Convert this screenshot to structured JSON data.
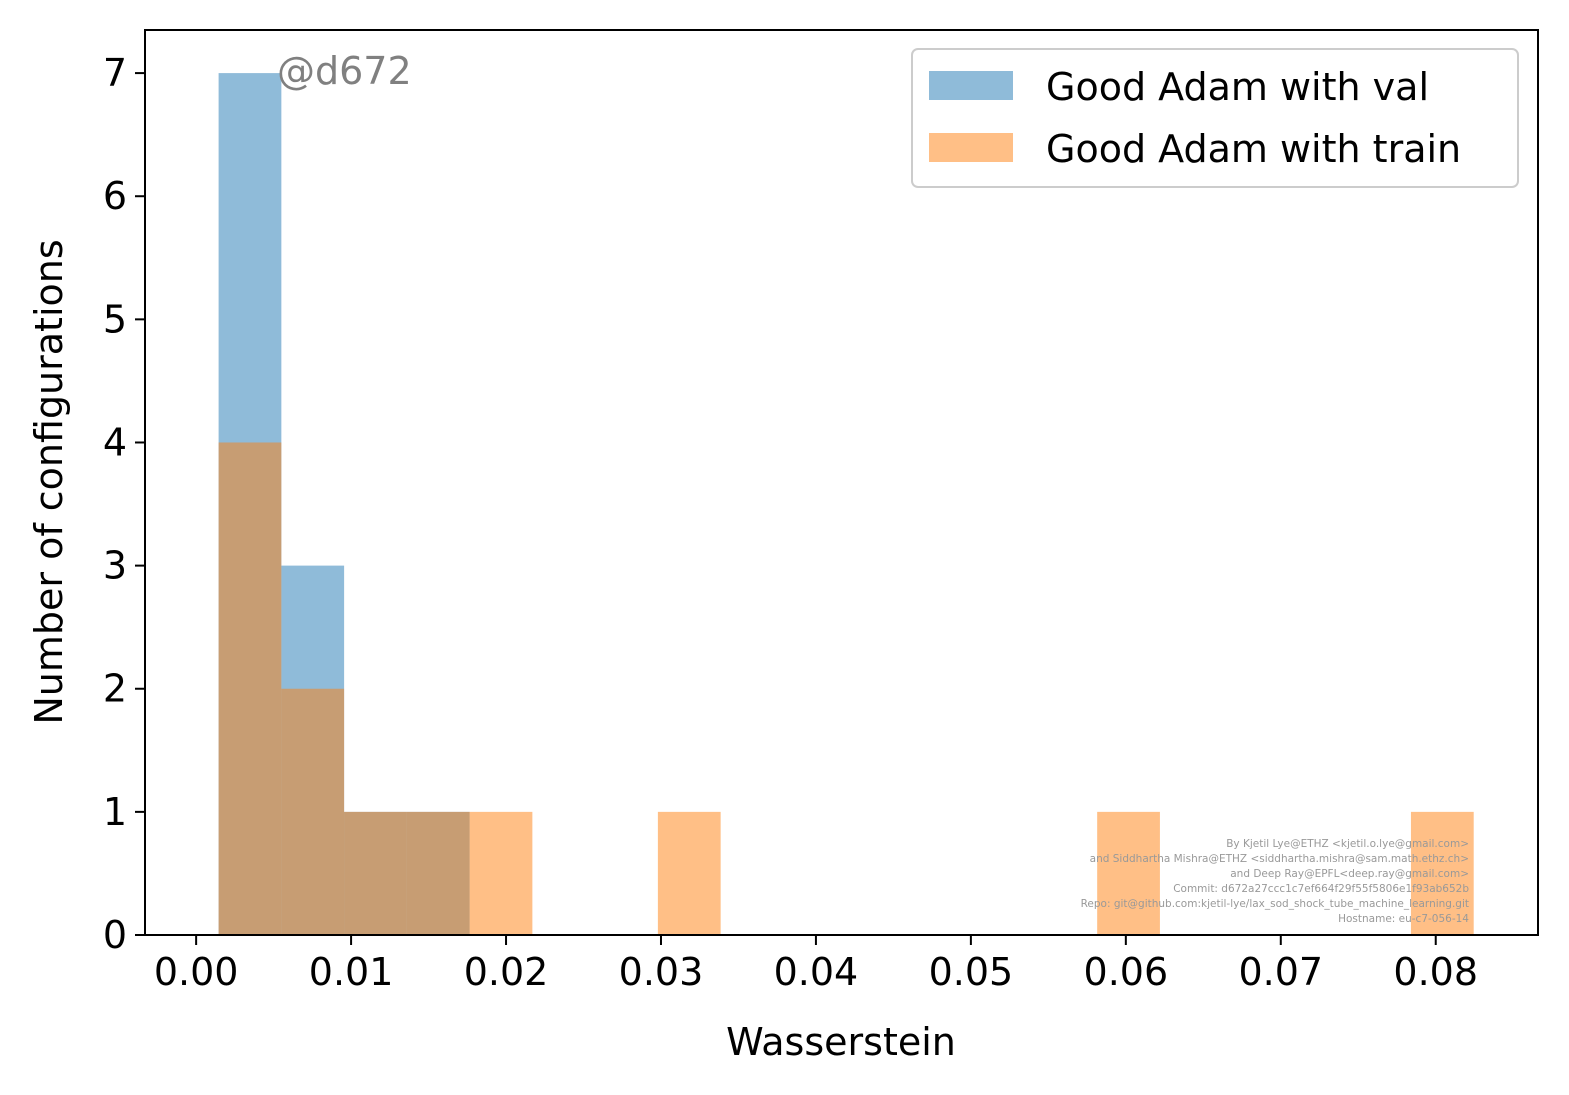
{
  "chart_data": {
    "type": "histogram",
    "xlabel": "Wasserstein",
    "ylabel": "Number of configurations",
    "xlim": [
      -0.0033,
      0.0866
    ],
    "ylim": [
      0,
      7.35
    ],
    "xticks": [
      0.0,
      0.01,
      0.02,
      0.03,
      0.04,
      0.05,
      0.06,
      0.07,
      0.08
    ],
    "xtick_labels": [
      "0.00",
      "0.01",
      "0.02",
      "0.03",
      "0.04",
      "0.05",
      "0.06",
      "0.07",
      "0.08"
    ],
    "yticks": [
      0,
      1,
      2,
      3,
      4,
      5,
      6,
      7
    ],
    "ytick_labels": [
      "0",
      "1",
      "2",
      "3",
      "4",
      "5",
      "6",
      "7"
    ],
    "bin_width": 0.00405,
    "series": [
      {
        "name": "Good Adam with val",
        "color": "#1f77b4",
        "alpha": 0.5,
        "bins": [
          {
            "x0": 0.00145,
            "count": 7
          },
          {
            "x0": 0.0055,
            "count": 3
          },
          {
            "x0": 0.00955,
            "count": 1
          },
          {
            "x0": 0.0136,
            "count": 1
          }
        ]
      },
      {
        "name": "Good Adam with train",
        "color": "#ff7f0e",
        "alpha": 0.5,
        "bins": [
          {
            "x0": 0.00145,
            "count": 4
          },
          {
            "x0": 0.0055,
            "count": 2
          },
          {
            "x0": 0.00955,
            "count": 1
          },
          {
            "x0": 0.0136,
            "count": 1
          },
          {
            "x0": 0.01765,
            "count": 1
          },
          {
            "x0": 0.0298,
            "count": 1
          },
          {
            "x0": 0.05815,
            "count": 1
          },
          {
            "x0": 0.0784,
            "count": 1
          }
        ]
      }
    ],
    "legend_position": "top-right",
    "grid": false,
    "annotation": "@d672",
    "credits": [
      "By Kjetil Lye@ETHZ <kjetil.o.lye@gmail.com>",
      "and Siddhartha Mishra@ETHZ <siddhartha.mishra@sam.math.ethz.ch>",
      "and Deep Ray@EPFL<deep.ray@gmail.com>",
      "Commit: d672a27ccc1c7ef664f29f55f5806e1f93ab652b",
      "Repo: git@github.com:kjetil-lye/lax_sod_shock_tube_machine_learning.git",
      "Hostname: eu-c7-056-14"
    ]
  }
}
